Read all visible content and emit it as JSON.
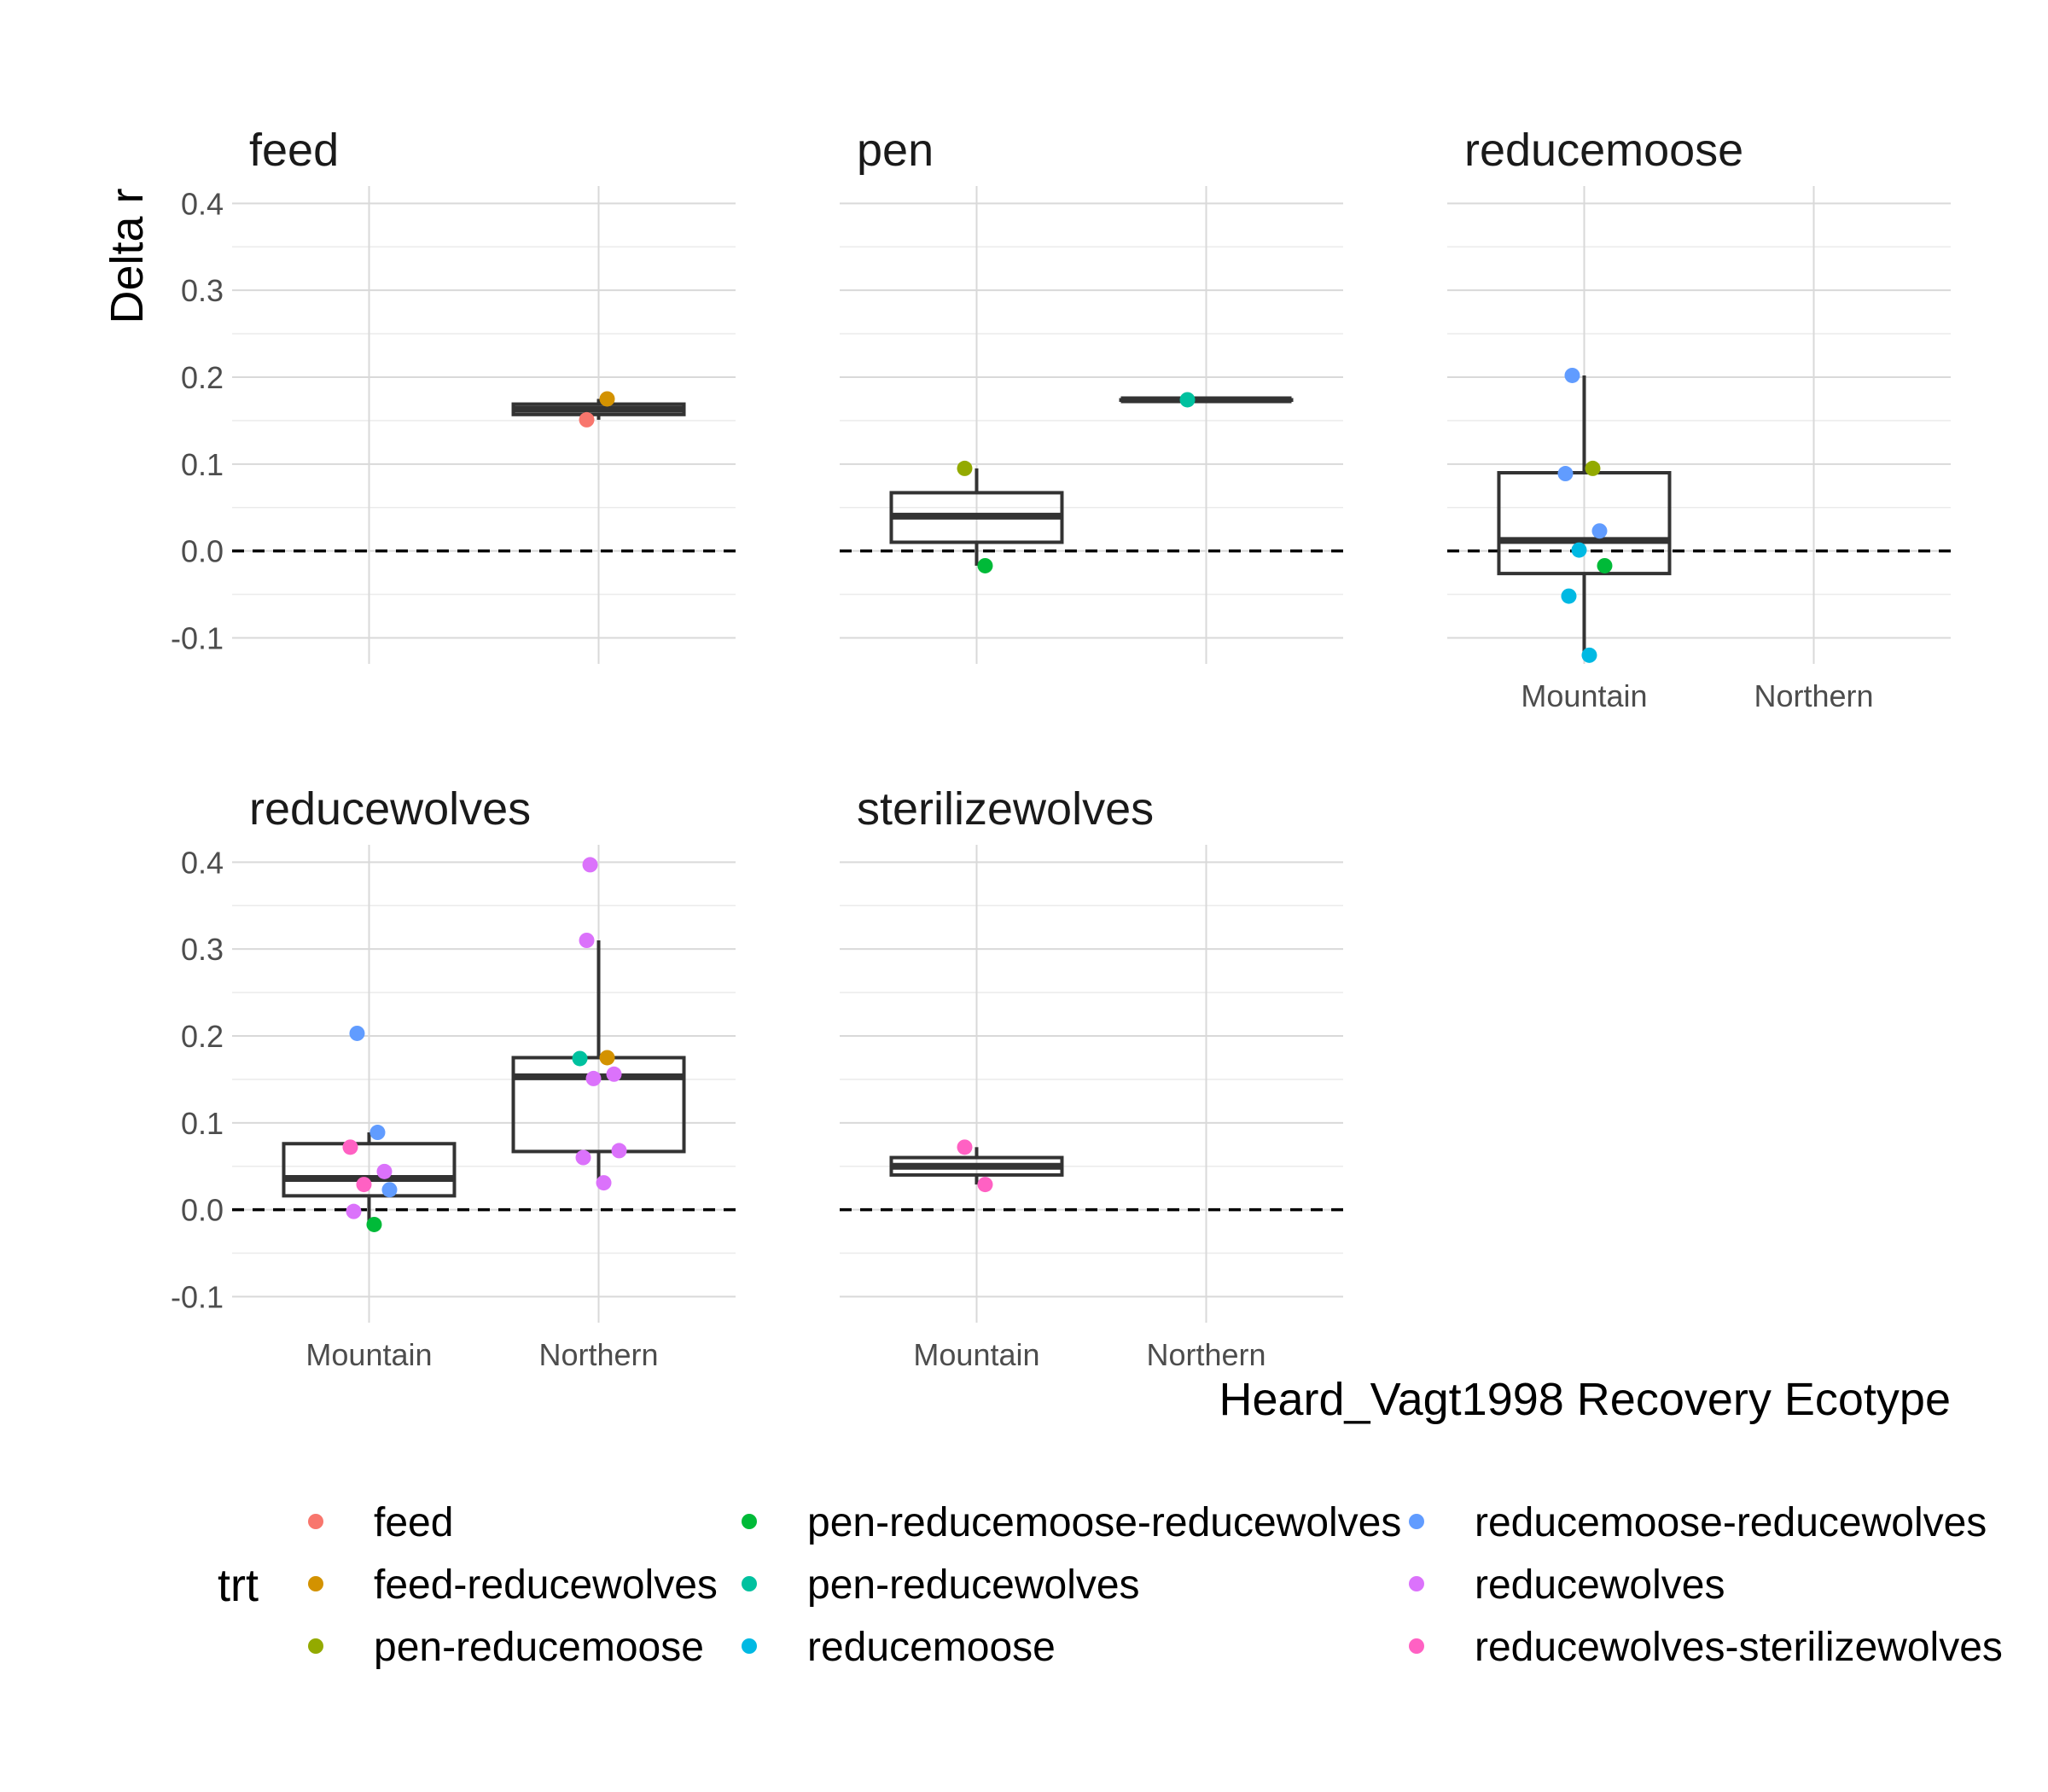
{
  "chart_data": {
    "type": "box",
    "facets": [
      "feed",
      "pen",
      "reducemoose",
      "reducewolves",
      "sterilizewolves"
    ],
    "categories": [
      "Mountain",
      "Northern"
    ],
    "xlabel": "Heard_Vagt1998 Recovery Ecotype",
    "ylabel": "Delta r",
    "ylim": [
      -0.13,
      0.42
    ],
    "yticks": [
      -0.1,
      0.0,
      0.1,
      0.2,
      0.3,
      0.4
    ],
    "ytick_labels": [
      "-0.1",
      "0.0",
      "0.1",
      "0.2",
      "0.3",
      "0.4"
    ],
    "reference_line": 0.0,
    "grid": true,
    "legend": {
      "title": "trt",
      "position": "bottom",
      "entries": [
        {
          "label": "feed",
          "color": "#F8766D"
        },
        {
          "label": "feed-reducewolves",
          "color": "#D39200"
        },
        {
          "label": "pen-reducemoose",
          "color": "#93AA00"
        },
        {
          "label": "pen-reducemoose-reducewolves",
          "color": "#00BA38"
        },
        {
          "label": "pen-reducewolves",
          "color": "#00C19F"
        },
        {
          "label": "reducemoose",
          "color": "#00B9E3"
        },
        {
          "label": "reducemoose-reducewolves",
          "color": "#619CFF"
        },
        {
          "label": "reducewolves",
          "color": "#DB72FB"
        },
        {
          "label": "reducewolves-sterilizewolves",
          "color": "#FF61C3"
        }
      ]
    },
    "panels": [
      {
        "facet": "feed",
        "boxes": [
          {
            "category": "Northern",
            "q1": 0.157,
            "median": 0.163,
            "q3": 0.169,
            "whisker_low": 0.151,
            "whisker_high": 0.175
          }
        ],
        "points": [
          {
            "category": "Northern",
            "trt": "feed",
            "y": 0.151
          },
          {
            "category": "Northern",
            "trt": "feed-reducewolves",
            "y": 0.175
          }
        ]
      },
      {
        "facet": "pen",
        "boxes": [
          {
            "category": "Mountain",
            "q1": 0.01,
            "median": 0.04,
            "q3": 0.067,
            "whisker_low": -0.017,
            "whisker_high": 0.095
          },
          {
            "category": "Northern",
            "q1": 0.174,
            "median": 0.174,
            "q3": 0.174,
            "whisker_low": 0.174,
            "whisker_high": 0.174
          }
        ],
        "points": [
          {
            "category": "Mountain",
            "trt": "pen-reducemoose",
            "y": 0.095
          },
          {
            "category": "Mountain",
            "trt": "pen-reducemoose-reducewolves",
            "y": -0.017
          },
          {
            "category": "Northern",
            "trt": "pen-reducewolves",
            "y": 0.174
          }
        ]
      },
      {
        "facet": "reducemoose",
        "boxes": [
          {
            "category": "Mountain",
            "q1": -0.026,
            "median": 0.012,
            "q3": 0.09,
            "whisker_low": -0.12,
            "whisker_high": 0.202
          }
        ],
        "points": [
          {
            "category": "Mountain",
            "trt": "reducemoose-reducewolves",
            "y": 0.202
          },
          {
            "category": "Mountain",
            "trt": "pen-reducemoose",
            "y": 0.095
          },
          {
            "category": "Mountain",
            "trt": "reducemoose-reducewolves",
            "y": 0.089
          },
          {
            "category": "Mountain",
            "trt": "reducemoose-reducewolves",
            "y": 0.023
          },
          {
            "category": "Mountain",
            "trt": "reducemoose",
            "y": 0.001
          },
          {
            "category": "Mountain",
            "trt": "pen-reducemoose-reducewolves",
            "y": -0.017
          },
          {
            "category": "Mountain",
            "trt": "reducemoose",
            "y": -0.052
          },
          {
            "category": "Mountain",
            "trt": "reducemoose",
            "y": -0.12
          }
        ]
      },
      {
        "facet": "reducewolves",
        "boxes": [
          {
            "category": "Mountain",
            "q1": 0.016,
            "median": 0.036,
            "q3": 0.076,
            "whisker_low": -0.017,
            "whisker_high": 0.089
          },
          {
            "category": "Northern",
            "q1": 0.067,
            "median": 0.153,
            "q3": 0.175,
            "whisker_low": 0.031,
            "whisker_high": 0.31
          }
        ],
        "points": [
          {
            "category": "Mountain",
            "trt": "reducemoose-reducewolves",
            "y": 0.203
          },
          {
            "category": "Mountain",
            "trt": "reducemoose-reducewolves",
            "y": 0.089
          },
          {
            "category": "Mountain",
            "trt": "reducewolves-sterilizewolves",
            "y": 0.072
          },
          {
            "category": "Mountain",
            "trt": "reducewolves",
            "y": 0.044
          },
          {
            "category": "Mountain",
            "trt": "reducewolves-sterilizewolves",
            "y": 0.029
          },
          {
            "category": "Mountain",
            "trt": "reducemoose-reducewolves",
            "y": 0.023
          },
          {
            "category": "Mountain",
            "trt": "reducewolves",
            "y": -0.002
          },
          {
            "category": "Mountain",
            "trt": "pen-reducemoose-reducewolves",
            "y": -0.017
          },
          {
            "category": "Northern",
            "trt": "reducewolves",
            "y": 0.397
          },
          {
            "category": "Northern",
            "trt": "reducewolves",
            "y": 0.31
          },
          {
            "category": "Northern",
            "trt": "feed-reducewolves",
            "y": 0.175
          },
          {
            "category": "Northern",
            "trt": "pen-reducewolves",
            "y": 0.174
          },
          {
            "category": "Northern",
            "trt": "reducewolves",
            "y": 0.156
          },
          {
            "category": "Northern",
            "trt": "reducewolves",
            "y": 0.151
          },
          {
            "category": "Northern",
            "trt": "reducewolves",
            "y": 0.068
          },
          {
            "category": "Northern",
            "trt": "reducewolves",
            "y": 0.06
          },
          {
            "category": "Northern",
            "trt": "reducewolves",
            "y": 0.031
          }
        ]
      },
      {
        "facet": "sterilizewolves",
        "boxes": [
          {
            "category": "Mountain",
            "q1": 0.04,
            "median": 0.05,
            "q3": 0.06,
            "whisker_low": 0.029,
            "whisker_high": 0.072
          }
        ],
        "points": [
          {
            "category": "Mountain",
            "trt": "reducewolves-sterilizewolves",
            "y": 0.072
          },
          {
            "category": "Mountain",
            "trt": "reducewolves-sterilizewolves",
            "y": 0.029
          }
        ]
      }
    ]
  }
}
